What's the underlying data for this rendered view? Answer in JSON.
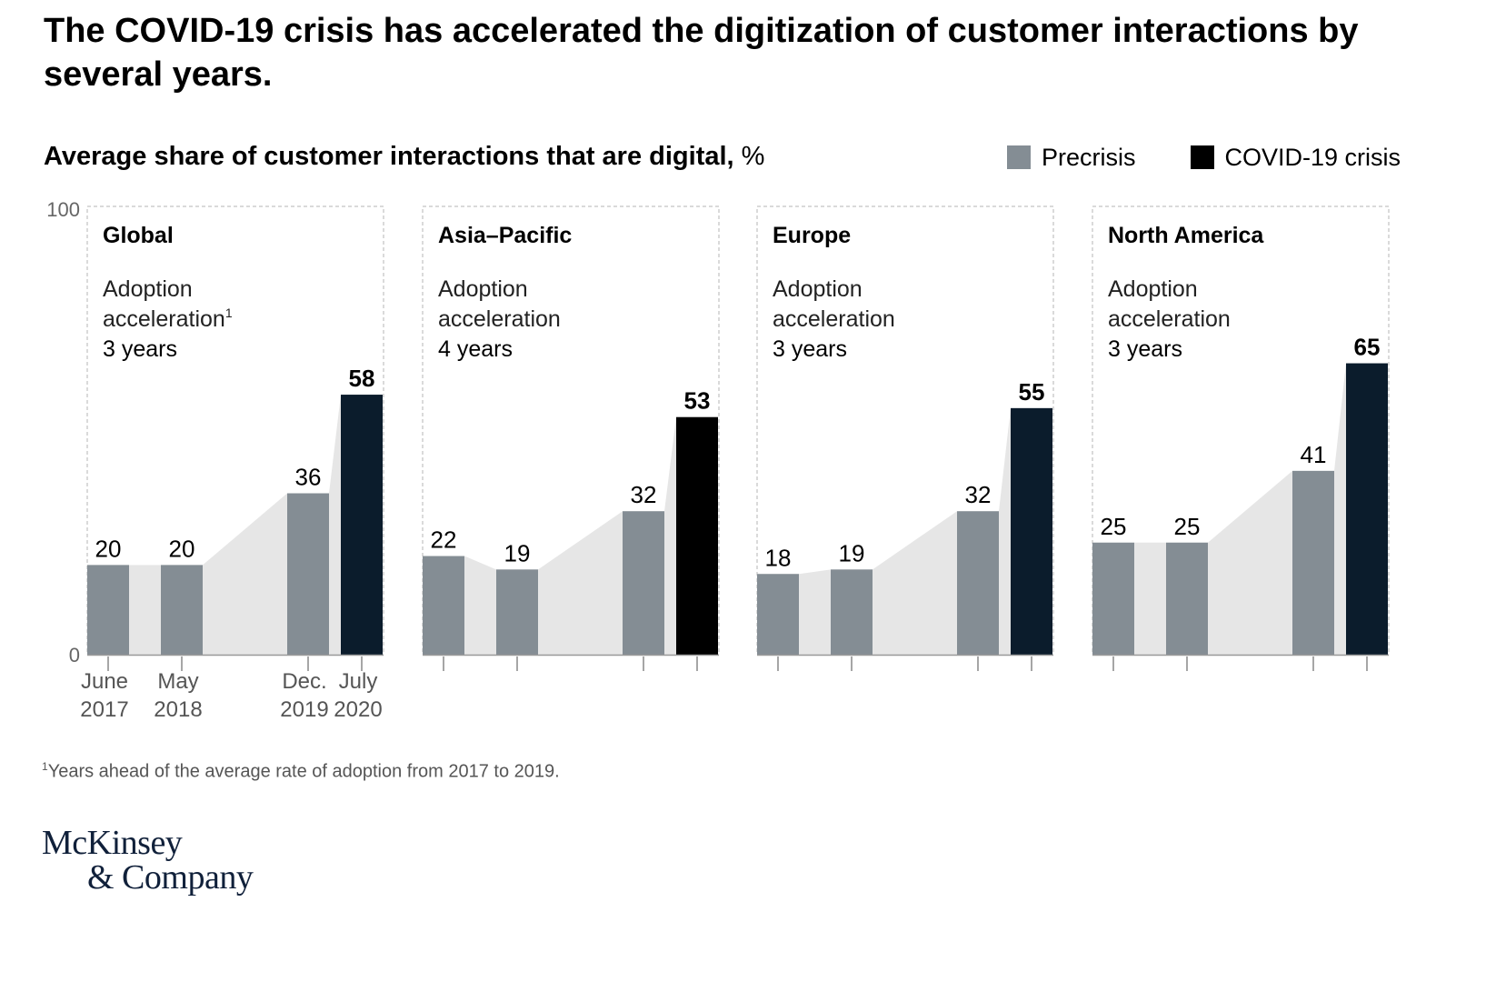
{
  "title": "The COVID-19 crisis has accelerated the digitization of customer interactions by several years.",
  "subtitle": "Average share of customer interactions that are digital,",
  "subtitle_unit": "%",
  "legend": {
    "precrisis_label": "Precrisis",
    "covid_label": "COVID-19 crisis"
  },
  "colors": {
    "precrisis": "#848d94",
    "covid": "#0b1c2c",
    "covid_asia": "#000000",
    "area": "#e6e6e6",
    "frame": "#b5b5b5"
  },
  "footnote": {
    "marker": "1",
    "text": "Years ahead of the average rate of adoption from 2017 to 2019."
  },
  "logo": {
    "line1": "McKinsey",
    "line2": "& Company"
  },
  "chart_data": {
    "type": "bar",
    "ylim": [
      0,
      100
    ],
    "y_ticks": [
      "0",
      "100"
    ],
    "x_tick_labels": [
      {
        "line1": "June",
        "line2": "2017"
      },
      {
        "line1": "May",
        "line2": "2018"
      },
      {
        "line1": "Dec.",
        "line2": "2019"
      },
      {
        "line1": "July",
        "line2": "2020"
      }
    ],
    "panels": [
      {
        "region": "Global",
        "adoption_label": "Adoption",
        "adoption_label2": "acceleration",
        "footnote_marker": "1",
        "adoption_value": "3 years",
        "categories": [
          "June 2017",
          "May 2018",
          "Dec. 2019",
          "July 2020"
        ],
        "values": [
          20,
          20,
          36,
          58
        ]
      },
      {
        "region": "Asia–Pacific",
        "adoption_label": "Adoption",
        "adoption_label2": "acceleration",
        "footnote_marker": "",
        "adoption_value": "4 years",
        "categories": [
          "June 2017",
          "May 2018",
          "Dec. 2019",
          "July 2020"
        ],
        "values": [
          22,
          19,
          32,
          53
        ]
      },
      {
        "region": "Europe",
        "adoption_label": "Adoption",
        "adoption_label2": "acceleration",
        "footnote_marker": "",
        "adoption_value": "3 years",
        "categories": [
          "June 2017",
          "May 2018",
          "Dec. 2019",
          "July 2020"
        ],
        "values": [
          18,
          19,
          32,
          55
        ]
      },
      {
        "region": "North America",
        "adoption_label": "Adoption",
        "adoption_label2": "acceleration",
        "footnote_marker": "",
        "adoption_value": "3 years",
        "categories": [
          "June 2017",
          "May 2018",
          "Dec. 2019",
          "July 2020"
        ],
        "values": [
          25,
          25,
          41,
          65
        ]
      }
    ]
  }
}
